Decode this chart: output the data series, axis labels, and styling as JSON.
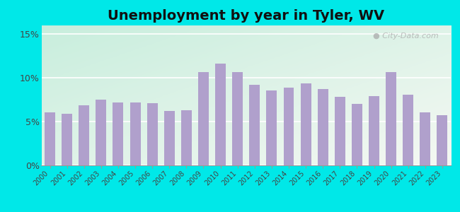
{
  "title": "Unemployment by year in Tyler, WV",
  "years": [
    2000,
    2001,
    2002,
    2003,
    2004,
    2005,
    2006,
    2007,
    2008,
    2009,
    2010,
    2011,
    2012,
    2013,
    2014,
    2015,
    2016,
    2017,
    2018,
    2019,
    2020,
    2021,
    2022,
    2023
  ],
  "values": [
    6.1,
    5.9,
    6.9,
    7.5,
    7.2,
    7.2,
    7.1,
    6.2,
    6.3,
    10.7,
    11.6,
    10.7,
    9.2,
    8.6,
    8.9,
    9.4,
    8.7,
    7.8,
    7.0,
    7.9,
    10.7,
    8.1,
    6.1,
    5.7
  ],
  "bar_color": "#b0a0cc",
  "bg_top_color": "#c8eedd",
  "bg_bottom_color": "#f0f5ee",
  "outer_bg_color": "#00e8e8",
  "yticks": [
    0,
    5,
    10,
    15
  ],
  "ylim": [
    0,
    16
  ],
  "title_fontsize": 14,
  "watermark": "City-Data.com"
}
